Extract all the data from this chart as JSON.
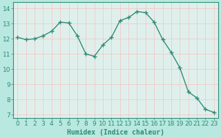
{
  "x": [
    0,
    1,
    2,
    3,
    4,
    5,
    6,
    7,
    8,
    9,
    10,
    11,
    12,
    13,
    14,
    15,
    16,
    17,
    18,
    19,
    20,
    21,
    22,
    23
  ],
  "y": [
    12.1,
    11.95,
    12.0,
    12.2,
    12.5,
    13.1,
    13.05,
    12.2,
    11.0,
    10.85,
    11.6,
    12.1,
    13.2,
    13.4,
    13.8,
    13.72,
    13.1,
    11.95,
    11.1,
    10.1,
    8.5,
    8.1,
    7.35,
    7.15
  ],
  "line_color": "#2d8b74",
  "marker": "+",
  "marker_size": 5,
  "marker_lw": 1.0,
  "bg_color": "#b8e8e0",
  "plot_bg_color": "#dff0ec",
  "grid_color": "#f0c8c8",
  "xlabel": "Humidex (Indice chaleur)",
  "xlabel_fontsize": 7,
  "ylabel_ticks": [
    7,
    8,
    9,
    10,
    11,
    12,
    13,
    14
  ],
  "xlim": [
    -0.5,
    23.5
  ],
  "ylim": [
    6.8,
    14.4
  ],
  "tick_fontsize": 6.5,
  "line_width": 1.0,
  "spine_color": "#2d8b74"
}
